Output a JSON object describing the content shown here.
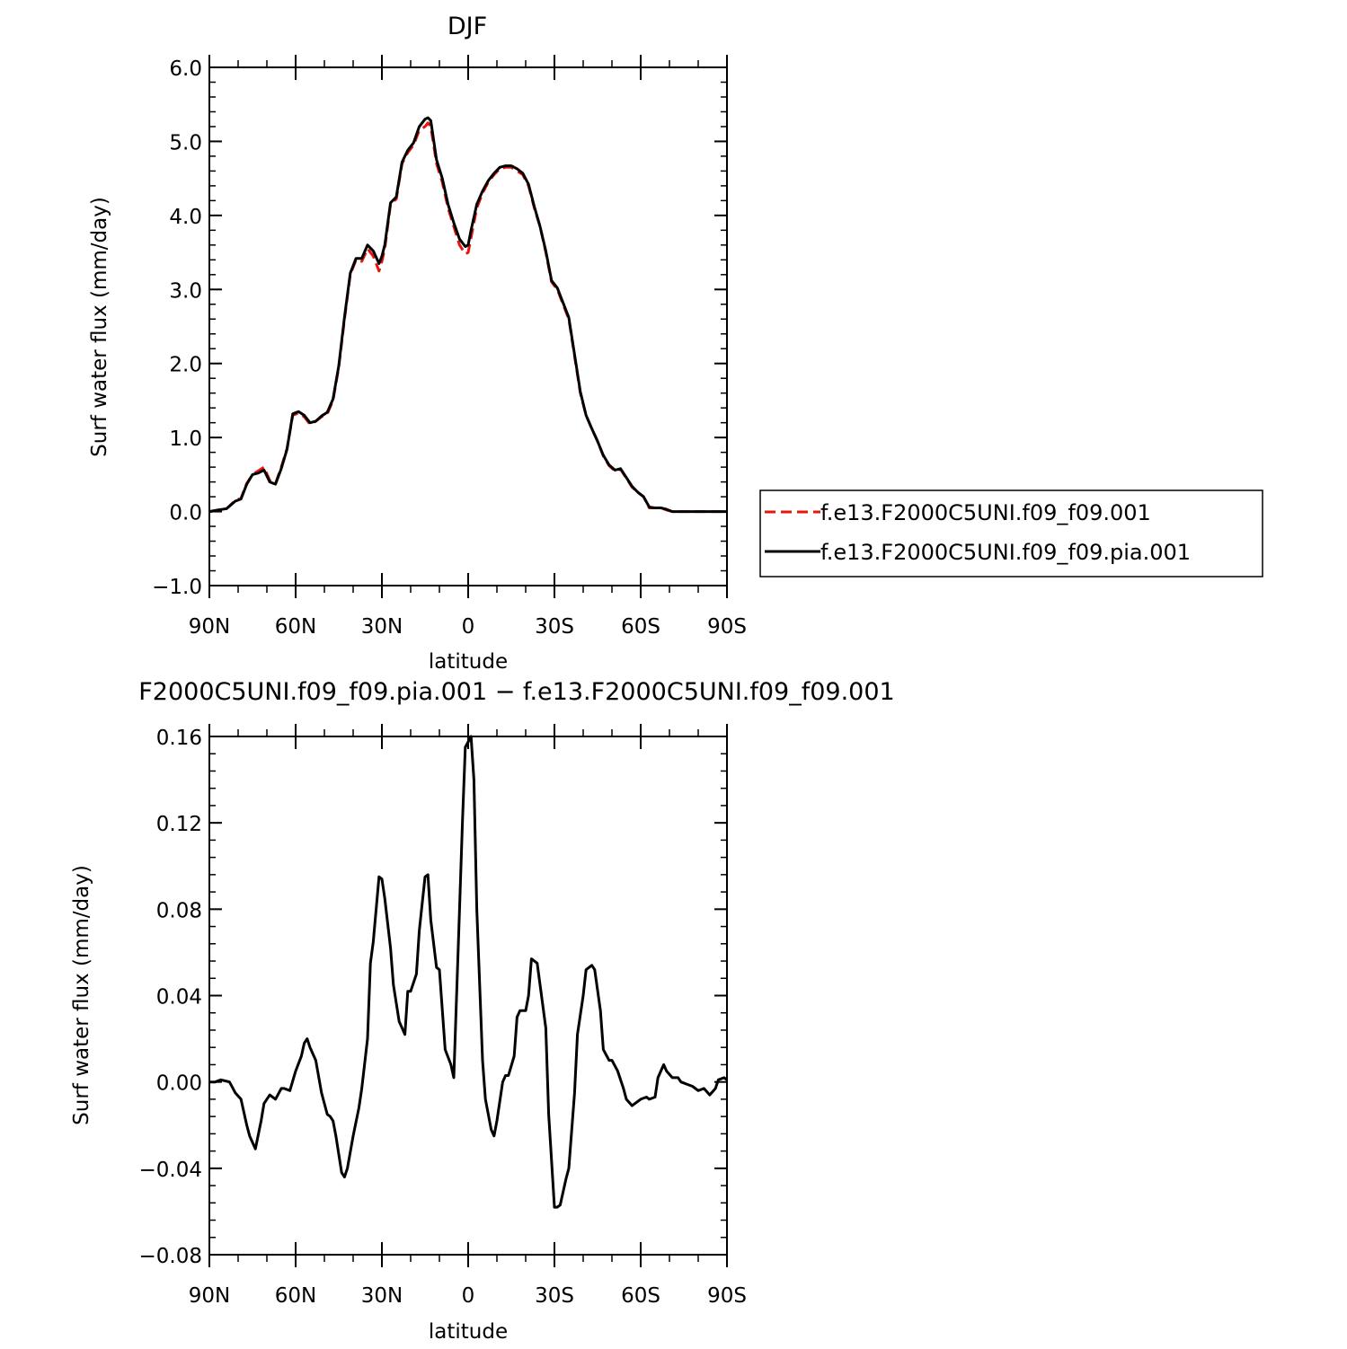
{
  "chart_data": [
    {
      "type": "line",
      "title": "DJF",
      "xlabel": "latitude",
      "ylabel": "Surf water flux (mm/day)",
      "xlim": [
        90,
        -90
      ],
      "ylim": [
        -1.0,
        6.0
      ],
      "xticks": [
        90,
        60,
        30,
        0,
        -30,
        -60,
        -90
      ],
      "xtick_labels": [
        "90N",
        "60N",
        "30N",
        "0",
        "30S",
        "60S",
        "90S"
      ],
      "yticks": [
        -1.0,
        0.0,
        1.0,
        2.0,
        3.0,
        4.0,
        5.0,
        6.0
      ],
      "ytick_labels": [
        "−1.0",
        "0.0",
        "1.0",
        "2.0",
        "3.0",
        "4.0",
        "5.0",
        "6.0"
      ],
      "grid": false,
      "legend_position": "right",
      "series": [
        {
          "name": "f.e13.F2000C5UNI.f09_f09.001",
          "color": "#e8140e",
          "dash": "dashed",
          "x": [
            90,
            87,
            84,
            81,
            79,
            77,
            75,
            73,
            71,
            69,
            67,
            65,
            63,
            61,
            59,
            57,
            55,
            53,
            51,
            49,
            47,
            45,
            43,
            41,
            39,
            37,
            35,
            33,
            31,
            30,
            29,
            27,
            25,
            23,
            21,
            19,
            17,
            15,
            14,
            13,
            11,
            9,
            7,
            5,
            3,
            1,
            0,
            -1,
            -3,
            -5,
            -7,
            -9,
            -11,
            -13,
            -15,
            -17,
            -19,
            -21,
            -23,
            -25,
            -27,
            -29,
            -31,
            -33,
            -35,
            -37,
            -39,
            -41,
            -43,
            -45,
            -47,
            -49,
            -51,
            -53,
            -55,
            -57,
            -59,
            -61,
            -63,
            -65,
            -67,
            -69,
            -71,
            -73,
            -75,
            -77,
            -79,
            -81,
            -83,
            -85,
            -87,
            -90
          ],
          "y": [
            0.0,
            0.02,
            0.04,
            0.15,
            0.18,
            0.38,
            0.5,
            0.55,
            0.6,
            0.42,
            0.38,
            0.6,
            0.85,
            1.3,
            1.33,
            1.28,
            1.18,
            1.22,
            1.28,
            1.32,
            1.5,
            1.95,
            2.6,
            3.2,
            3.4,
            3.38,
            3.55,
            3.45,
            3.25,
            3.38,
            3.55,
            4.15,
            4.22,
            4.7,
            4.85,
            4.95,
            5.15,
            5.2,
            5.25,
            5.2,
            4.7,
            4.45,
            4.1,
            3.85,
            3.6,
            3.48,
            3.5,
            3.7,
            4.1,
            4.3,
            4.45,
            4.55,
            4.63,
            4.65,
            4.65,
            4.6,
            4.55,
            4.4,
            4.1,
            3.85,
            3.5,
            3.1,
            3.0,
            2.8,
            2.6,
            2.1,
            1.6,
            1.3,
            1.12,
            0.95,
            0.75,
            0.62,
            0.55,
            0.57,
            0.45,
            0.33,
            0.26,
            0.2,
            0.05,
            0.05,
            0.05,
            0.02,
            0.0,
            0.0,
            0.0,
            0.0,
            0.0,
            0.0,
            0.0,
            0.0,
            0.0,
            0.0
          ]
        },
        {
          "name": "f.e13.F2000C5UNI.f09_f09.pia.001",
          "color": "#000000",
          "dash": "solid",
          "x": [
            90,
            87,
            84,
            81,
            79,
            77,
            75,
            73,
            71,
            69,
            67,
            65,
            63,
            61,
            59,
            57,
            55,
            53,
            51,
            49,
            47,
            45,
            43,
            41,
            39,
            37,
            35,
            33,
            31,
            30,
            29,
            27,
            25,
            23,
            21,
            19,
            17,
            15,
            14,
            13,
            11,
            9,
            7,
            5,
            3,
            1,
            0,
            -1,
            -3,
            -5,
            -7,
            -9,
            -11,
            -13,
            -15,
            -17,
            -19,
            -21,
            -23,
            -25,
            -27,
            -29,
            -31,
            -33,
            -35,
            -37,
            -39,
            -41,
            -43,
            -45,
            -47,
            -49,
            -51,
            -53,
            -55,
            -57,
            -59,
            -61,
            -63,
            -65,
            -67,
            -69,
            -71,
            -73,
            -75,
            -77,
            -79,
            -81,
            -83,
            -85,
            -87,
            -90
          ],
          "y": [
            0.0,
            0.02,
            0.04,
            0.14,
            0.17,
            0.37,
            0.5,
            0.52,
            0.56,
            0.4,
            0.37,
            0.58,
            0.84,
            1.32,
            1.35,
            1.3,
            1.2,
            1.22,
            1.29,
            1.34,
            1.52,
            1.97,
            2.63,
            3.22,
            3.42,
            3.42,
            3.6,
            3.52,
            3.35,
            3.45,
            3.6,
            4.17,
            4.25,
            4.72,
            4.88,
            4.98,
            5.2,
            5.3,
            5.32,
            5.28,
            4.75,
            4.5,
            4.15,
            3.9,
            3.68,
            3.58,
            3.6,
            3.8,
            4.15,
            4.33,
            4.47,
            4.57,
            4.65,
            4.67,
            4.67,
            4.63,
            4.57,
            4.42,
            4.12,
            3.85,
            3.52,
            3.12,
            3.02,
            2.82,
            2.62,
            2.12,
            1.62,
            1.3,
            1.12,
            0.95,
            0.76,
            0.63,
            0.56,
            0.58,
            0.46,
            0.34,
            0.26,
            0.2,
            0.06,
            0.05,
            0.05,
            0.03,
            0.0,
            0.0,
            0.0,
            0.0,
            0.0,
            0.0,
            0.0,
            0.0,
            0.0,
            0.0
          ]
        }
      ]
    },
    {
      "type": "line",
      "title": "F2000C5UNI.f09_f09.pia.001 − f.e13.F2000C5UNI.f09_f09.001",
      "xlabel": "latitude",
      "ylabel": "Surf water flux (mm/day)",
      "xlim": [
        90,
        -90
      ],
      "ylim": [
        -0.08,
        0.16
      ],
      "xticks": [
        90,
        60,
        30,
        0,
        -30,
        -60,
        -90
      ],
      "xtick_labels": [
        "90N",
        "60N",
        "30N",
        "0",
        "30S",
        "60S",
        "90S"
      ],
      "yticks": [
        -0.08,
        -0.04,
        0.0,
        0.04,
        0.08,
        0.12,
        0.16
      ],
      "ytick_labels": [
        "−0.08",
        "−0.04",
        "0.00",
        "0.04",
        "0.08",
        "0.12",
        "0.16"
      ],
      "grid": false,
      "series": [
        {
          "color": "#000000",
          "dash": "solid",
          "x": [
            90,
            88,
            86,
            83,
            81,
            79,
            77,
            76,
            74,
            72,
            71,
            69,
            67,
            65,
            64,
            62,
            60,
            58,
            57,
            56,
            55,
            53,
            51,
            49,
            48,
            47,
            46,
            44,
            43,
            42,
            40,
            38,
            37,
            35,
            34,
            33,
            31,
            30,
            29,
            27,
            26,
            24,
            22,
            21,
            20,
            18,
            17,
            15,
            14,
            13,
            11,
            10,
            8,
            6,
            5,
            3,
            2,
            1,
            -1,
            -2,
            -3,
            -5,
            -6,
            -8,
            -9,
            -10,
            -12,
            -13,
            -14,
            -16,
            -17,
            -18,
            -20,
            -21,
            -22,
            -24,
            -25,
            -27,
            -28,
            -30,
            -31,
            -32,
            -34,
            -35,
            -37,
            -38,
            -40,
            -41,
            -43,
            -44,
            -46,
            -47,
            -49,
            -50,
            -52,
            -54,
            -55,
            -57,
            -58,
            -60,
            -62,
            -63,
            -65,
            -66,
            -68,
            -69,
            -71,
            -73,
            -74,
            -76,
            -78,
            -80,
            -82,
            -84,
            -86,
            -87,
            -89,
            -90
          ],
          "y": [
            0.0,
            0.0,
            0.001,
            0.0,
            -0.005,
            -0.008,
            -0.02,
            -0.025,
            -0.031,
            -0.018,
            -0.01,
            -0.006,
            -0.008,
            -0.003,
            -0.003,
            -0.004,
            0.005,
            0.012,
            0.018,
            0.02,
            0.016,
            0.01,
            -0.005,
            -0.015,
            -0.016,
            -0.018,
            -0.025,
            -0.042,
            -0.044,
            -0.04,
            -0.025,
            -0.012,
            -0.003,
            0.02,
            0.055,
            0.065,
            0.095,
            0.094,
            0.085,
            0.062,
            0.045,
            0.028,
            0.022,
            0.042,
            0.042,
            0.05,
            0.07,
            0.095,
            0.096,
            0.075,
            0.053,
            0.052,
            0.015,
            0.008,
            0.002,
            0.08,
            0.12,
            0.155,
            0.16,
            0.14,
            0.08,
            0.01,
            -0.008,
            -0.022,
            -0.025,
            -0.018,
            0.0,
            0.003,
            0.003,
            0.012,
            0.03,
            0.033,
            0.033,
            0.04,
            0.057,
            0.055,
            0.045,
            0.025,
            -0.015,
            -0.058,
            -0.058,
            -0.057,
            -0.045,
            -0.04,
            -0.005,
            0.022,
            0.04,
            0.052,
            0.054,
            0.052,
            0.033,
            0.015,
            0.01,
            0.01,
            0.005,
            -0.003,
            -0.008,
            -0.011,
            -0.01,
            -0.008,
            -0.007,
            -0.008,
            -0.007,
            0.002,
            0.008,
            0.005,
            0.002,
            0.002,
            0.0,
            -0.001,
            -0.002,
            -0.004,
            -0.003,
            -0.006,
            -0.003,
            0.001,
            0.002,
            0.001
          ]
        }
      ]
    }
  ]
}
